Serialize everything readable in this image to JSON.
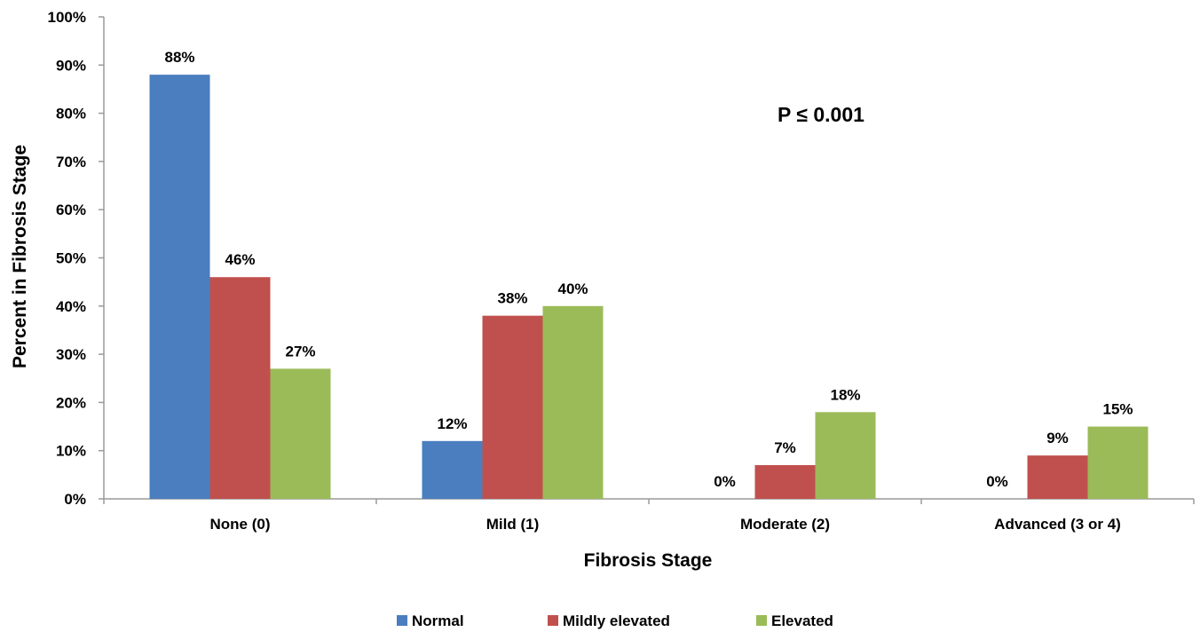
{
  "chart_data": {
    "type": "bar",
    "xlabel": "Fibrosis Stage",
    "ylabel": "Percent in Fibrosis Stage",
    "ylim": [
      0,
      100
    ],
    "yticks": [
      "0%",
      "10%",
      "20%",
      "30%",
      "40%",
      "50%",
      "60%",
      "70%",
      "80%",
      "90%",
      "100%"
    ],
    "categories": [
      "None (0)",
      "Mild (1)",
      "Moderate (2)",
      "Advanced (3 or 4)"
    ],
    "series": [
      {
        "name": "Normal",
        "color": "#4a7ebf",
        "values": [
          88,
          12,
          0,
          0
        ],
        "labels": [
          "88%",
          "12%",
          "0%",
          "0%"
        ]
      },
      {
        "name": "Mildly elevated",
        "color": "#c0504d",
        "values": [
          46,
          38,
          7,
          9
        ],
        "labels": [
          "46%",
          "38%",
          "7%",
          "9%"
        ]
      },
      {
        "name": "Elevated",
        "color": "#9bbb59",
        "values": [
          27,
          40,
          18,
          15
        ],
        "labels": [
          "27%",
          "40%",
          "18%",
          "15%"
        ]
      }
    ],
    "annotation": "P ≤ 0.001",
    "grid": false,
    "legend_position": "bottom"
  }
}
